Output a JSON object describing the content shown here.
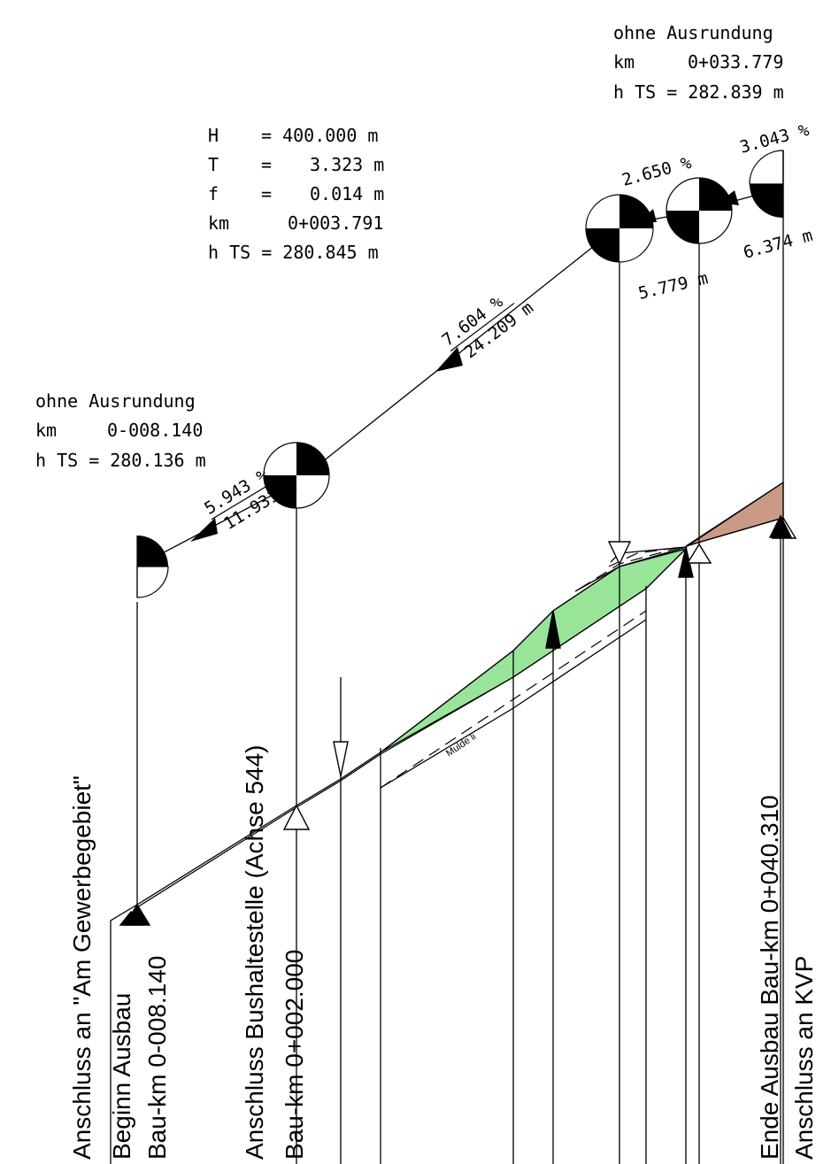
{
  "colors": {
    "fill_green": "#98e59a",
    "fill_brown": "#c99a86",
    "line": "#000000"
  },
  "annotations": {
    "start_point": {
      "label": "ohne Ausrundung",
      "km_key": "km",
      "km_value": "0-008.140",
      "h_ts": "h TS = 280.136 m"
    },
    "curve": {
      "H_key": "H",
      "H_value": "= 400.000 m",
      "T_key": "T",
      "T_eq": "=",
      "T_value": "3.323 m",
      "f_key": "f",
      "f_eq": "=",
      "f_value": "0.014 m",
      "km_key": "km",
      "km_value": "0+003.791",
      "h_ts": "h TS = 280.845 m"
    },
    "end_point": {
      "label": "ohne Ausrundung",
      "km_key": "km",
      "km_value": "0+033.779",
      "h_ts": "h TS = 282.839 m"
    }
  },
  "gradients": {
    "seg1_slope": "5.943 %",
    "seg1_length": "11.931 m",
    "seg2_slope": "7.604 %",
    "seg2_length": "24.209 m",
    "seg3_slope": "2.650 %",
    "seg3_length": "5.779 m",
    "seg4_slope": "3.043 %",
    "seg4_length": "6.374 m"
  },
  "ditch_label": "Mulde li",
  "stations": {
    "s1_line1": "Anschluss an \"Am Gewerbegebiet\"",
    "s1_line2": "Beginn Ausbau",
    "s1_line3": "Bau-km 0-008.140",
    "s2_line1": "Anschluss Bushaltestelle (Achse 544)",
    "s2_line2": "Bau-km 0+002.000",
    "s3_line1": "Ende Ausbau Bau-km 0+040.310",
    "s3_line2": "Anschluss an KVP"
  }
}
